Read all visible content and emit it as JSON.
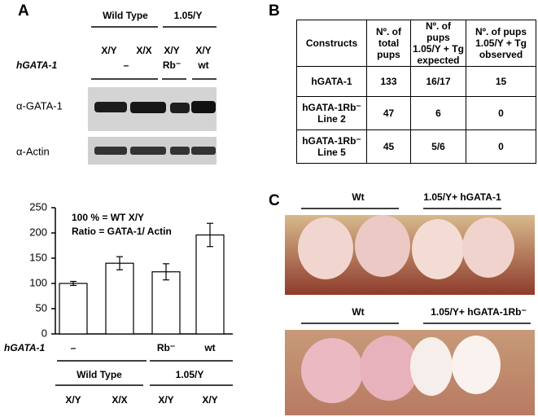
{
  "panel_labels": [
    "A",
    "B",
    "C"
  ],
  "blot": {
    "groups": [
      "Wild Type",
      "1.05/Y"
    ],
    "genotypes": [
      "X/Y",
      "X/X",
      "X/Y",
      "X/Y"
    ],
    "transgene_label": "hGATA-1",
    "transgenes": [
      "–",
      "Rb⁻",
      "wt"
    ],
    "rows": [
      "α-GATA-1",
      "α-Actin"
    ]
  },
  "chart_data": {
    "type": "bar",
    "annotations": [
      "100 % = WT X/Y",
      "Ratio = GATA-1/ Actin"
    ],
    "categories": [
      "X/Y",
      "X/X",
      "X/Y",
      "X/Y"
    ],
    "values": [
      100,
      140,
      123,
      196
    ],
    "errors": [
      4,
      13,
      16,
      23
    ],
    "color": "#ffffff",
    "ylim": [
      0,
      250
    ],
    "yticks": [
      0,
      50,
      100,
      150,
      200,
      250
    ],
    "transgene_label": "hGATA-1",
    "transgenes": [
      "–",
      "Rb⁻",
      "wt"
    ],
    "groups": [
      "Wild Type",
      "1.05/Y"
    ]
  },
  "table": {
    "header": [
      "Constructs",
      "Nº. of\ntotal\npups",
      "Nº. of pups\n1.05/Y + Tg\nexpected",
      "Nº. of pups\n1.05/Y + Tg\nobserved"
    ],
    "rows": [
      [
        "hGATA-1",
        "133",
        "16/17",
        "15"
      ],
      [
        "hGATA-1Rb⁻\nLine 2",
        "47",
        "6",
        "0"
      ],
      [
        "hGATA-1Rb⁻\nLine 5",
        "45",
        "5/6",
        "0"
      ]
    ]
  },
  "photos": {
    "top": [
      "Wt",
      "1.05/Y+ hGATA-1"
    ],
    "bottom": [
      "Wt",
      "1.05/Y+ hGATA-1Rb⁻"
    ]
  }
}
